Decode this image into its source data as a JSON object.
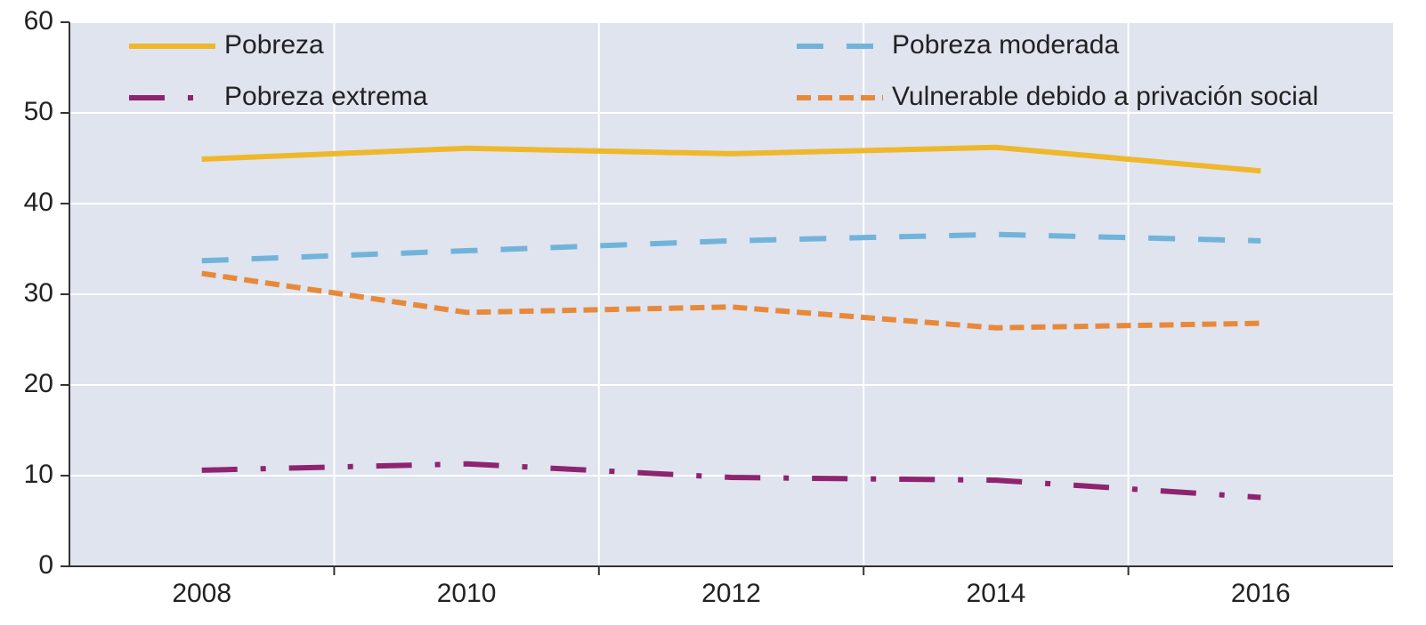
{
  "chart_data": {
    "type": "line",
    "x": [
      2008,
      2010,
      2012,
      2014,
      2016
    ],
    "series": [
      {
        "name": "Pobreza",
        "color": "#eeb82a",
        "dash": "solid",
        "values": [
          44.9,
          46.1,
          45.5,
          46.2,
          43.6
        ]
      },
      {
        "name": "Pobreza extrema",
        "color": "#8e2470",
        "dash": "dashdot",
        "values": [
          10.6,
          11.3,
          9.8,
          9.5,
          7.6
        ]
      },
      {
        "name": "Pobreza moderada",
        "color": "#72b3da",
        "dash": "dashed",
        "values": [
          33.7,
          34.8,
          35.9,
          36.6,
          35.9
        ]
      },
      {
        "name": "Vulnerable debido a privación social",
        "color": "#e8893a",
        "dash": "dotted",
        "values": [
          32.3,
          28.0,
          28.6,
          26.3,
          26.8
        ]
      }
    ],
    "xlim": [
      2007,
      2017
    ],
    "xticks": [
      2008,
      2010,
      2012,
      2014,
      2016
    ],
    "xgrid": [
      2009,
      2011,
      2013,
      2015
    ],
    "ylim": [
      0,
      60
    ],
    "yticks": [
      0,
      10,
      20,
      30,
      40,
      50,
      60
    ],
    "grid": true
  }
}
